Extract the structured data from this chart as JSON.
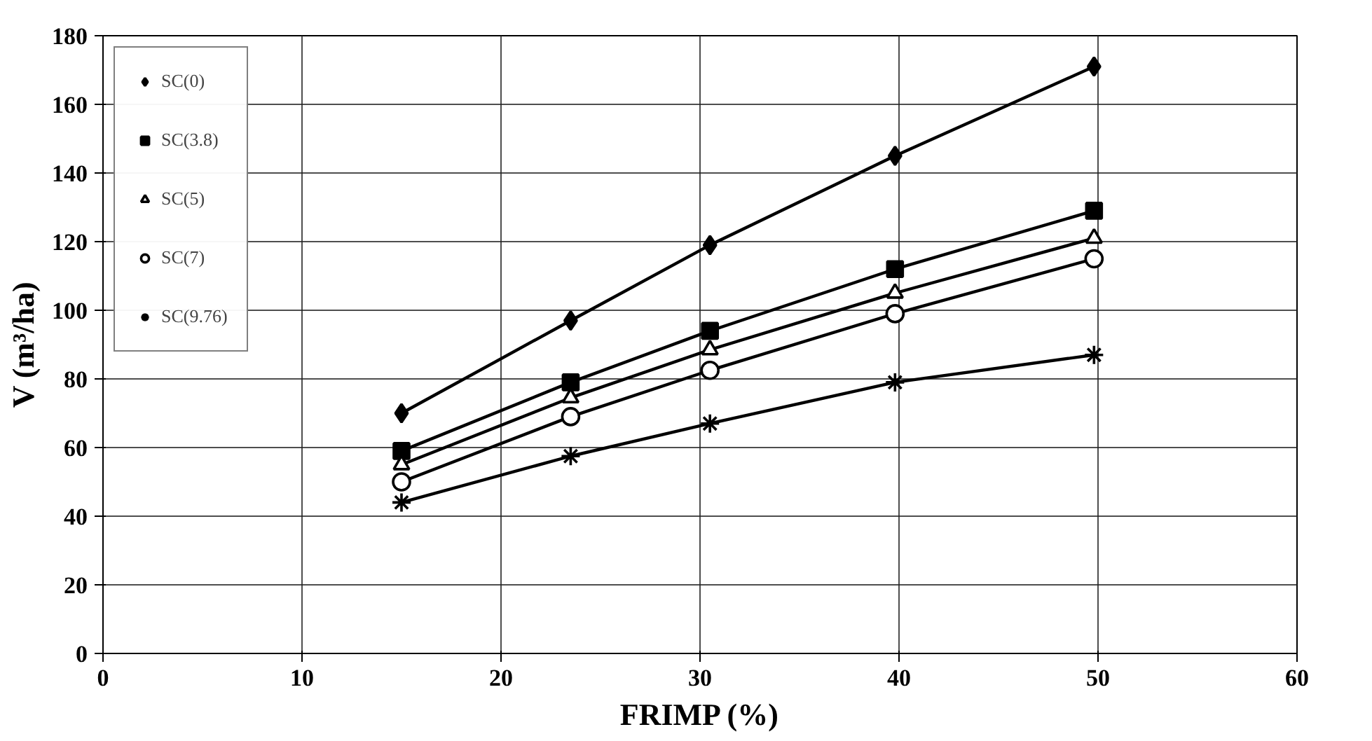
{
  "chart_data": {
    "type": "line",
    "xlabel": "FRIMP (%)",
    "ylabel": "V (m³/ha)",
    "x": [
      15,
      23.5,
      30.5,
      39.8,
      49.8
    ],
    "series": [
      {
        "name": "SC(0)",
        "color": "#000000",
        "marker": "diamond",
        "values": [
          70,
          97,
          119,
          145,
          171
        ]
      },
      {
        "name": "SC(3.8)",
        "color": "#000000",
        "marker": "square",
        "values": [
          59,
          79,
          94,
          112,
          129
        ]
      },
      {
        "name": "SC(5)",
        "color": "#000000",
        "marker": "triangle",
        "values": [
          55,
          74.5,
          88.5,
          105,
          121
        ]
      },
      {
        "name": "SC(7)",
        "color": "#000000",
        "marker": "circle",
        "values": [
          50,
          69,
          82.5,
          99,
          115
        ]
      },
      {
        "name": "SC(9.76)",
        "color": "#000000",
        "marker": "cross",
        "values": [
          44,
          57.5,
          67,
          79,
          87
        ]
      }
    ],
    "xlim": [
      0,
      60
    ],
    "xticks": [
      0,
      10,
      20,
      30,
      40,
      50,
      60
    ],
    "ylim": [
      0,
      180
    ],
    "yticks": [
      0,
      20,
      40,
      60,
      80,
      100,
      120,
      140,
      160,
      180
    ],
    "grid": true,
    "legend": "top left",
    "line_style": "solid"
  }
}
